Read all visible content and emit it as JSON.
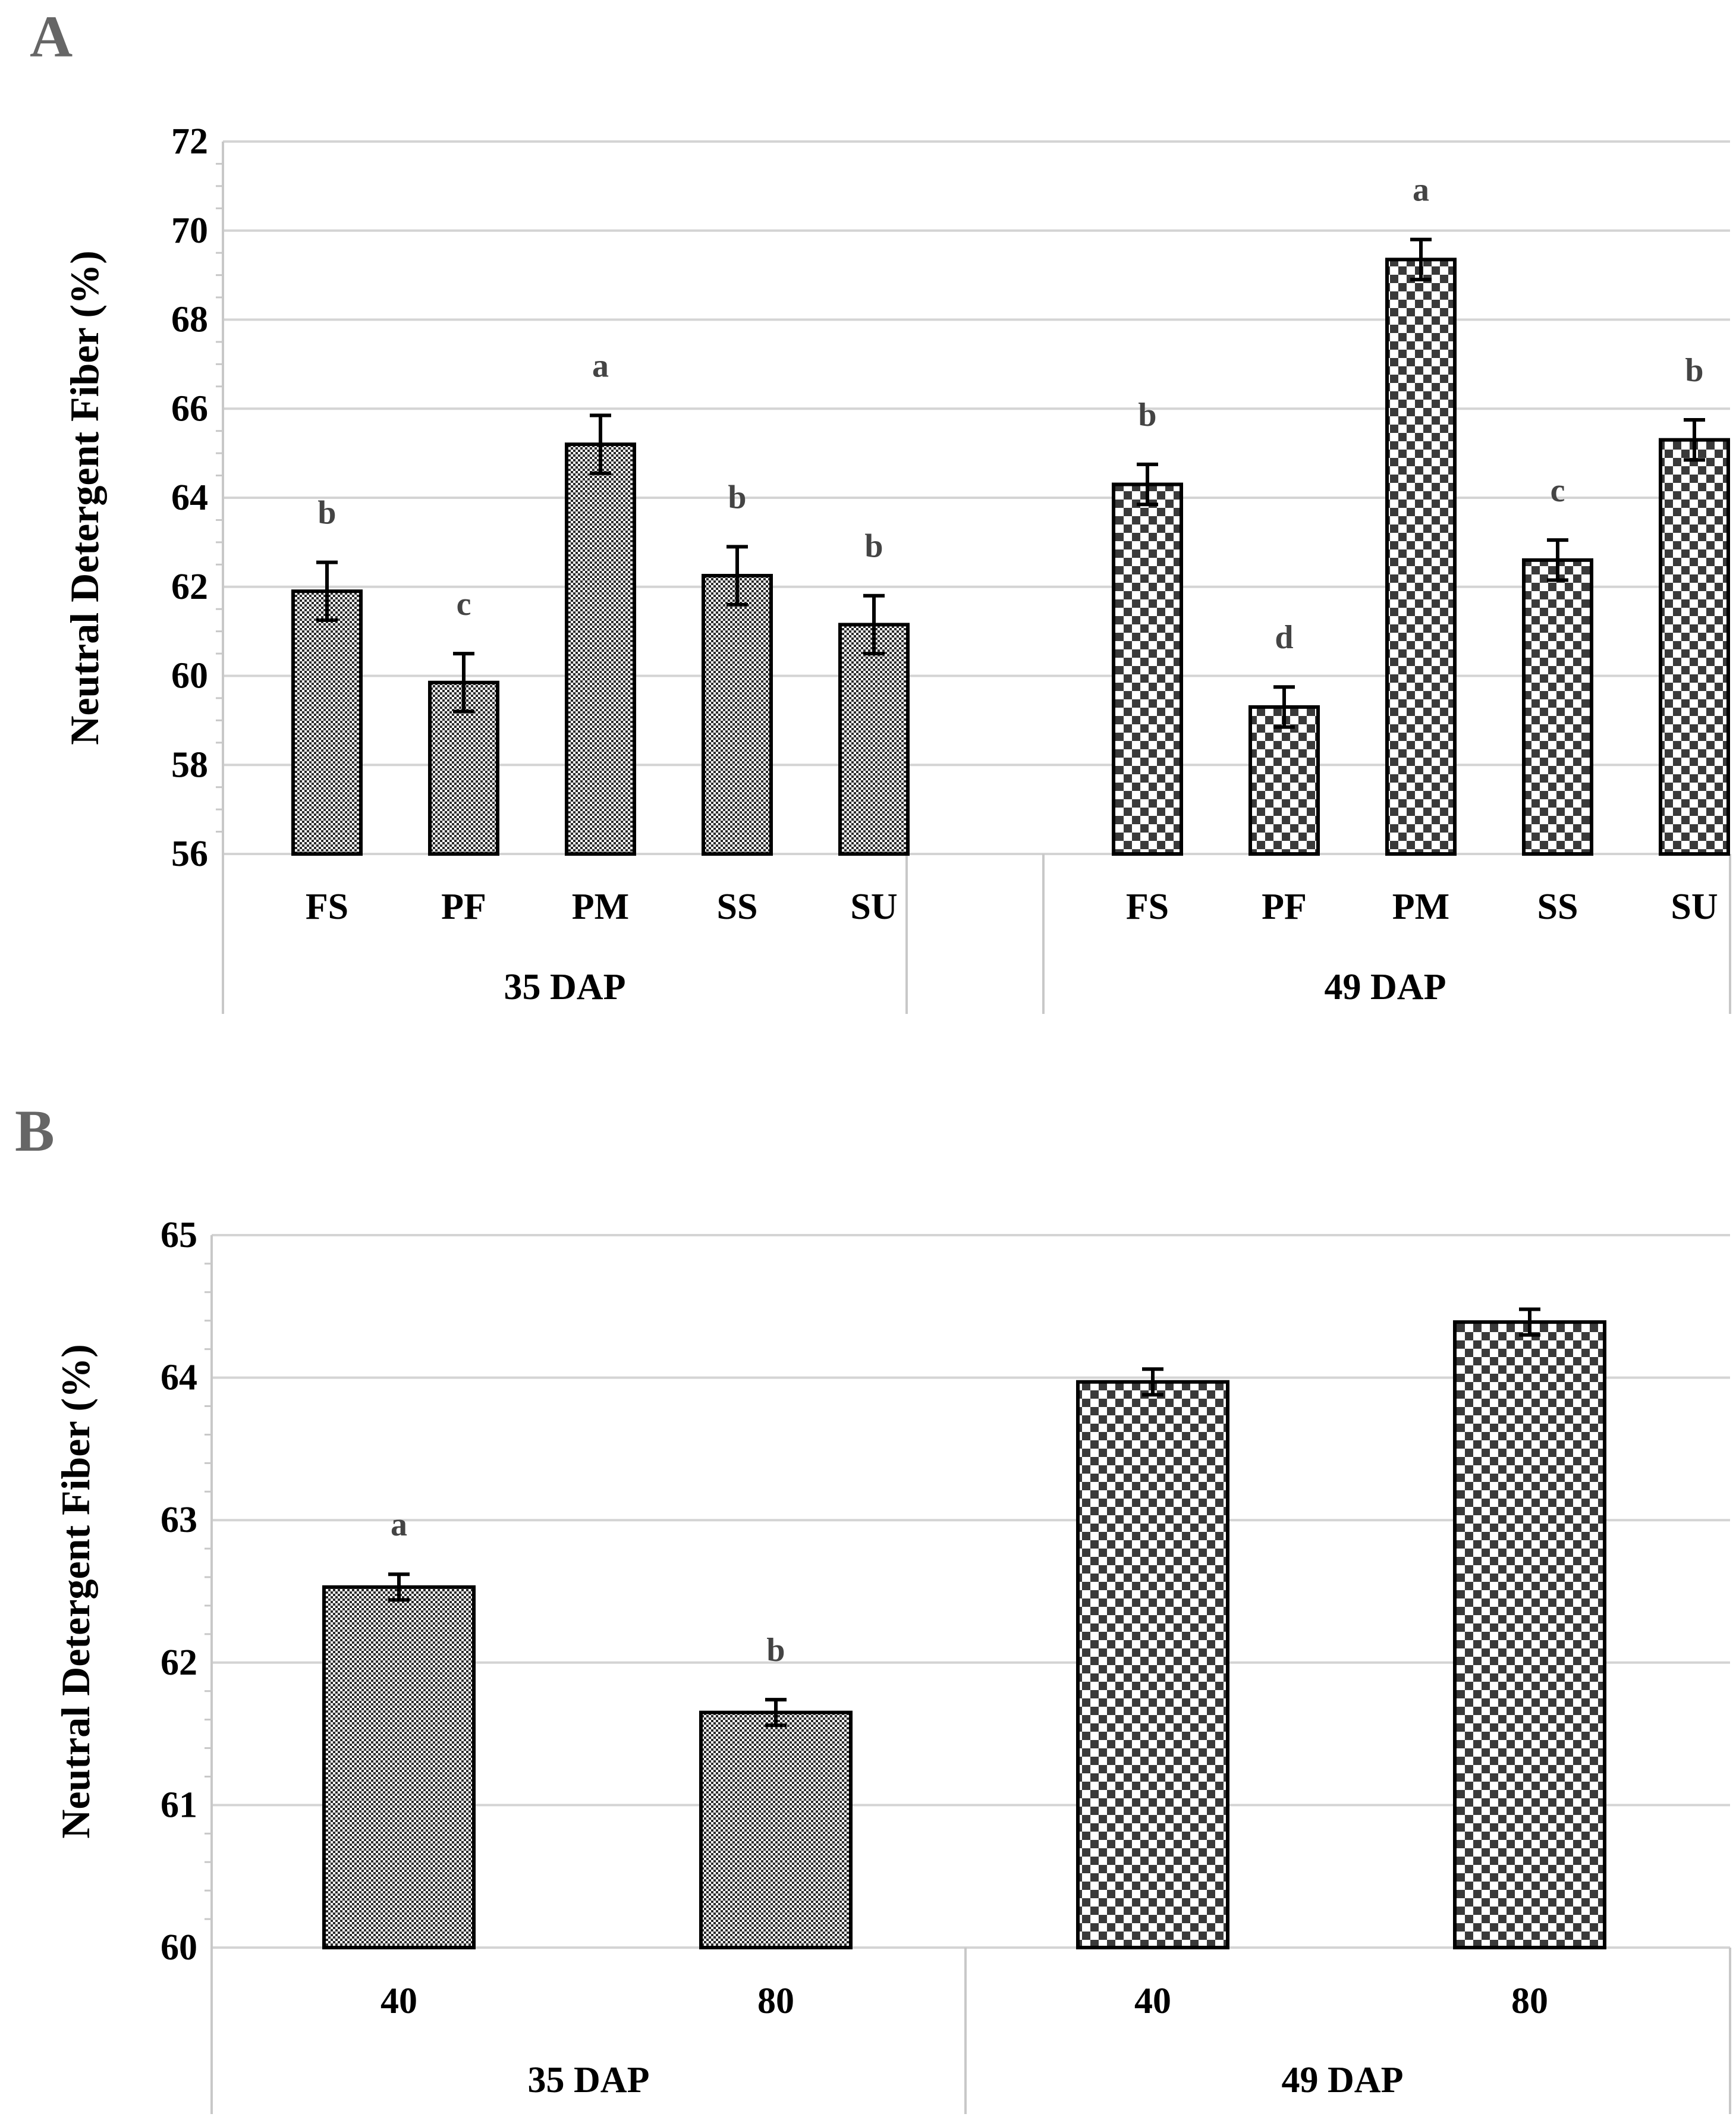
{
  "chart_data": [
    {
      "panel": "A",
      "type": "bar",
      "ylabel": "Neutral Detergent Fiber (%)",
      "ylim": [
        56,
        72
      ],
      "yticks": [
        56,
        58,
        60,
        62,
        64,
        66,
        68,
        70,
        72
      ],
      "grid": true,
      "groups": [
        {
          "name": "35 DAP",
          "pattern": "fine",
          "categories": [
            "FS",
            "PF",
            "PM",
            "SS",
            "SU"
          ],
          "values": [
            61.9,
            59.85,
            65.2,
            62.25,
            61.15
          ],
          "errors": [
            0.65,
            0.65,
            0.65,
            0.65,
            0.65
          ],
          "letters": [
            "b",
            "c",
            "a",
            "b",
            "b"
          ]
        },
        {
          "name": "49 DAP",
          "pattern": "coarse",
          "categories": [
            "FS",
            "PF",
            "PM",
            "SS",
            "SU"
          ],
          "values": [
            64.3,
            59.3,
            69.35,
            62.6,
            65.3
          ],
          "errors": [
            0.45,
            0.45,
            0.45,
            0.45,
            0.45
          ],
          "letters": [
            "b",
            "d",
            "a",
            "c",
            "b"
          ]
        }
      ]
    },
    {
      "panel": "B",
      "type": "bar",
      "ylabel": "Neutral Detergent Fiber  (%)",
      "ylim": [
        60,
        65
      ],
      "yticks": [
        60,
        61,
        62,
        63,
        64,
        65
      ],
      "grid": true,
      "groups": [
        {
          "name": "35 DAP",
          "pattern": "fine",
          "categories": [
            "40",
            "80"
          ],
          "values": [
            62.53,
            61.65
          ],
          "errors": [
            0.09,
            0.09
          ],
          "letters": [
            "a",
            "b"
          ]
        },
        {
          "name": "49 DAP",
          "pattern": "coarse",
          "categories": [
            "40",
            "80"
          ],
          "values": [
            63.97,
            64.39
          ],
          "errors": [
            0.09,
            0.09
          ],
          "letters": [
            "",
            ""
          ]
        }
      ]
    }
  ],
  "colors": {
    "bar_outline": "#000000",
    "fill_dark": "#2b2b2b",
    "grid": "#d4d4d4",
    "letter": "#444444"
  }
}
